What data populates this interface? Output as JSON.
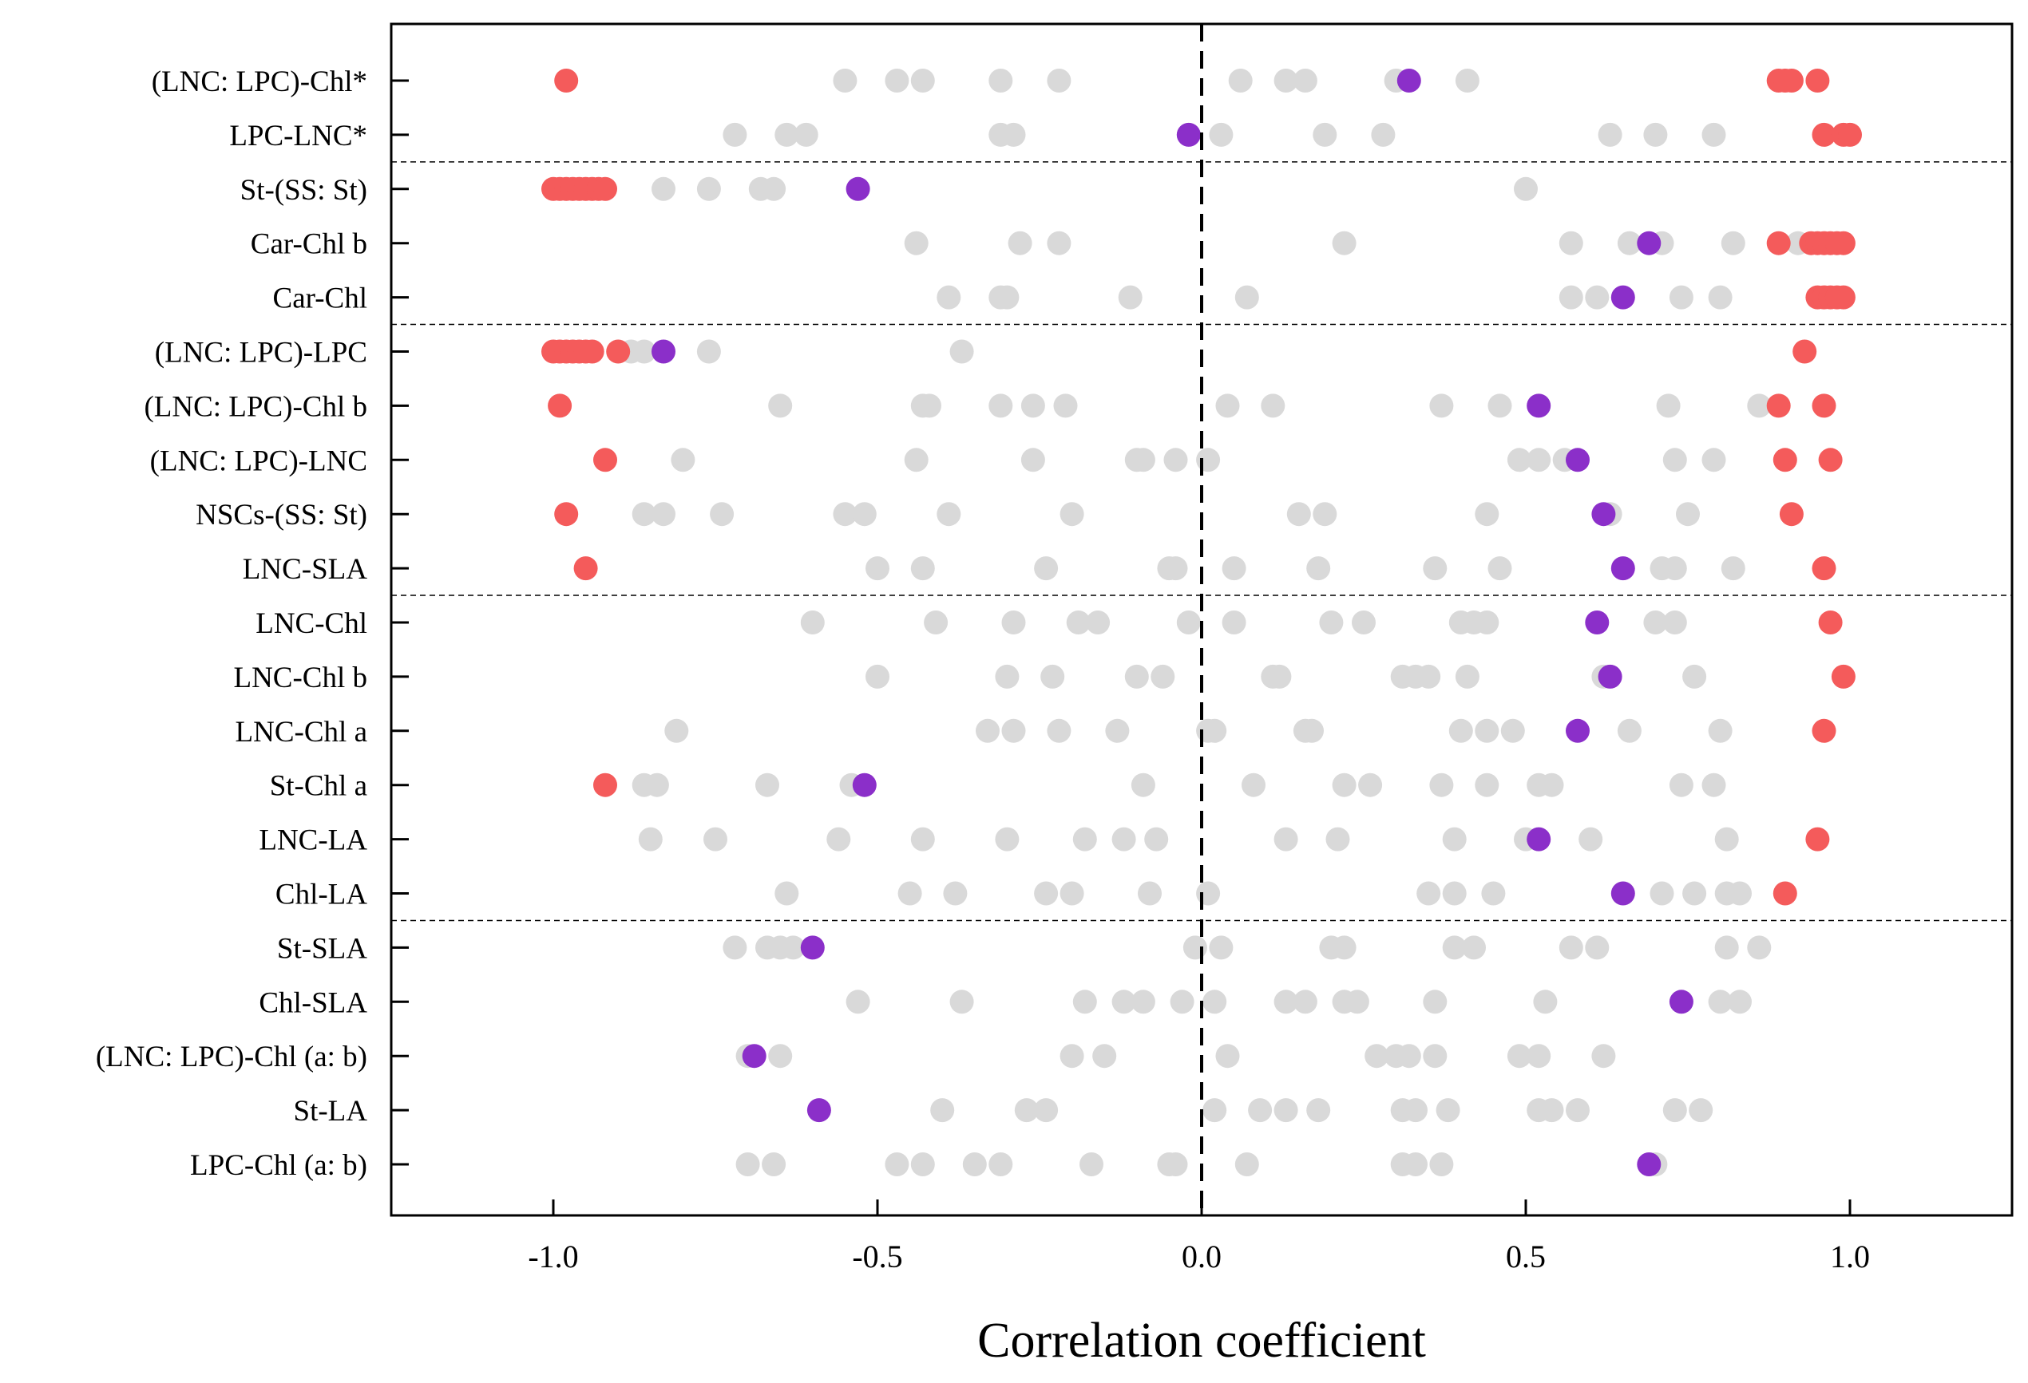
{
  "chart_data": {
    "type": "scatter",
    "title": "",
    "xlabel": "Correlation coefficient",
    "ylabel": "",
    "xlim": [
      -1.25,
      1.25
    ],
    "xticks": [
      -1.0,
      -0.5,
      0.0,
      0.5,
      1.0
    ],
    "xtick_labels": [
      "-1.0",
      "-0.5",
      "0.0",
      "0.5",
      "1.0"
    ],
    "reference_line": {
      "x": 0.0,
      "style": "dashed"
    },
    "group_separators_after": [
      "LPC-LNC*",
      "Car-Chl",
      "LNC-SLA",
      "Chl-LA"
    ],
    "colors": {
      "grey": "#d9d9d9",
      "highlight": "#8b2fc9",
      "extreme": "#f45b5b"
    },
    "categories": [
      "(LNC: LPC)-Chl*",
      "LPC-LNC*",
      "St-(SS: St)",
      "Car-Chl b",
      "Car-Chl",
      "(LNC: LPC)-LPC",
      "(LNC: LPC)-Chl b",
      "(LNC: LPC)-LNC",
      "NSCs-(SS: St)",
      "LNC-SLA",
      "LNC-Chl",
      "LNC-Chl b",
      "LNC-Chl a",
      "St-Chl a",
      "LNC-LA",
      "Chl-LA",
      "St-SLA",
      "Chl-SLA",
      "(LNC: LPC)-Chl (a: b)",
      "St-LA",
      "LPC-Chl (a: b)"
    ],
    "series": [
      {
        "color": "grey",
        "values": [
          [
            -0.55,
            -0.47,
            -0.43,
            -0.31,
            -0.22,
            0.06,
            0.13,
            0.16,
            0.3,
            0.41
          ],
          [
            -0.72,
            -0.64,
            -0.61,
            -0.31,
            -0.29,
            0.03,
            0.19,
            0.28,
            0.63,
            0.7,
            0.79
          ],
          [
            -0.83,
            -0.76,
            -0.68,
            -0.66,
            0.5
          ],
          [
            -0.44,
            -0.28,
            -0.22,
            0.22,
            0.57,
            0.66,
            0.71,
            0.82,
            0.92
          ],
          [
            -0.39,
            -0.31,
            -0.3,
            -0.11,
            0.07,
            0.57,
            0.61,
            0.74,
            0.8
          ],
          [
            -0.88,
            -0.86,
            -0.76,
            -0.37
          ],
          [
            -0.65,
            -0.43,
            -0.42,
            -0.31,
            -0.26,
            -0.21,
            0.04,
            0.11,
            0.37,
            0.46,
            0.72,
            0.86
          ],
          [
            -0.8,
            -0.44,
            -0.26,
            -0.1,
            -0.09,
            -0.04,
            0.01,
            0.49,
            0.52,
            0.56,
            0.73,
            0.79
          ],
          [
            -0.86,
            -0.83,
            -0.74,
            -0.55,
            -0.52,
            -0.39,
            -0.2,
            0.15,
            0.19,
            0.44,
            0.63,
            0.75
          ],
          [
            -0.5,
            -0.43,
            -0.24,
            -0.05,
            -0.04,
            0.05,
            0.18,
            0.36,
            0.46,
            0.71,
            0.73,
            0.82
          ],
          [
            -0.6,
            -0.41,
            -0.29,
            -0.19,
            -0.16,
            -0.02,
            0.05,
            0.2,
            0.25,
            0.4,
            0.42,
            0.44,
            0.7,
            0.73
          ],
          [
            -0.5,
            -0.3,
            -0.23,
            -0.1,
            -0.06,
            0.11,
            0.12,
            0.31,
            0.33,
            0.35,
            0.41,
            0.62,
            0.76
          ],
          [
            -0.81,
            -0.33,
            -0.29,
            -0.22,
            -0.13,
            0.01,
            0.02,
            0.16,
            0.17,
            0.4,
            0.44,
            0.48,
            0.66,
            0.8
          ],
          [
            -0.86,
            -0.84,
            -0.67,
            -0.54,
            -0.09,
            0.08,
            0.22,
            0.26,
            0.37,
            0.44,
            0.52,
            0.54,
            0.74,
            0.79
          ],
          [
            -0.85,
            -0.75,
            -0.56,
            -0.43,
            -0.3,
            -0.18,
            -0.12,
            -0.07,
            0.13,
            0.21,
            0.39,
            0.5,
            0.6,
            0.81
          ],
          [
            -0.64,
            -0.45,
            -0.38,
            -0.24,
            -0.2,
            -0.08,
            0.01,
            0.35,
            0.39,
            0.45,
            0.71,
            0.76,
            0.81,
            0.83
          ],
          [
            -0.72,
            -0.67,
            -0.65,
            -0.63,
            -0.01,
            0.03,
            0.2,
            0.22,
            0.39,
            0.42,
            0.57,
            0.61,
            0.81,
            0.86
          ],
          [
            -0.53,
            -0.37,
            -0.18,
            -0.12,
            -0.09,
            -0.03,
            0.02,
            0.13,
            0.16,
            0.22,
            0.24,
            0.36,
            0.53,
            0.8,
            0.83
          ],
          [
            -0.7,
            -0.65,
            -0.2,
            -0.15,
            0.04,
            0.27,
            0.3,
            0.32,
            0.36,
            0.49,
            0.52,
            0.62
          ],
          [
            -0.4,
            -0.27,
            -0.24,
            0.02,
            0.09,
            0.13,
            0.18,
            0.31,
            0.33,
            0.38,
            0.52,
            0.54,
            0.58,
            0.73,
            0.77
          ],
          [
            -0.7,
            -0.66,
            -0.47,
            -0.43,
            -0.35,
            -0.31,
            -0.17,
            -0.05,
            -0.04,
            0.07,
            0.31,
            0.33,
            0.37,
            0.7
          ]
        ]
      },
      {
        "color": "highlight",
        "values": [
          [
            0.32
          ],
          [
            -0.02
          ],
          [
            -0.53
          ],
          [
            0.69
          ],
          [
            0.65
          ],
          [
            -0.83
          ],
          [
            0.52
          ],
          [
            0.58
          ],
          [
            0.62
          ],
          [
            0.65
          ],
          [
            0.61
          ],
          [
            0.63
          ],
          [
            0.58
          ],
          [
            -0.52
          ],
          [
            0.52
          ],
          [
            0.65
          ],
          [
            -0.6
          ],
          [
            0.74
          ],
          [
            -0.69
          ],
          [
            -0.59
          ],
          [
            0.69
          ]
        ]
      },
      {
        "color": "extreme",
        "values": [
          [
            -0.98,
            0.89,
            0.9,
            0.91,
            0.95
          ],
          [
            0.96,
            0.99,
            1.0
          ],
          [
            -1.0,
            -0.99,
            -0.98,
            -0.97,
            -0.96,
            -0.95,
            -0.94,
            -0.93,
            -0.92
          ],
          [
            0.89,
            0.94,
            0.95,
            0.96,
            0.97,
            0.98,
            0.99
          ],
          [
            0.95,
            0.96,
            0.97,
            0.98,
            0.99
          ],
          [
            -1.0,
            -0.99,
            -0.98,
            -0.97,
            -0.96,
            -0.95,
            -0.94,
            -0.9,
            0.93
          ],
          [
            -0.99,
            0.89,
            0.96
          ],
          [
            -0.92,
            0.9,
            0.97
          ],
          [
            -0.98,
            0.91
          ],
          [
            -0.95,
            0.96
          ],
          [
            0.97
          ],
          [
            0.99
          ],
          [
            0.96
          ],
          [
            -0.92
          ],
          [
            0.95
          ],
          [
            0.9
          ],
          [],
          [],
          [],
          [],
          []
        ]
      }
    ]
  }
}
